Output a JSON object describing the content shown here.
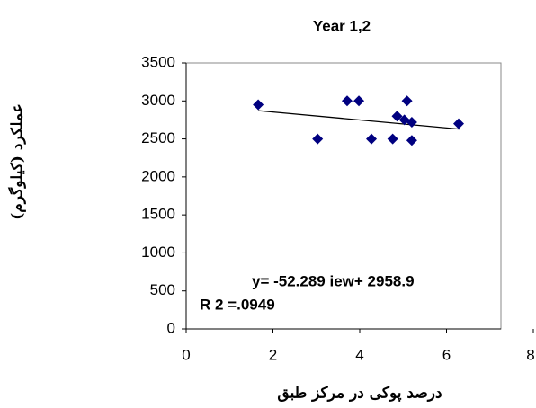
{
  "chart_data": {
    "type": "scatter",
    "title": "Year 1,2",
    "x_label": "درصد پوکی در مرکز طبق",
    "y_label": "عملکرد (کیلوگرم)",
    "series": [
      {
        "name": "Year 1,2",
        "color": "#000080",
        "x": [
          1.66,
          3.03,
          3.71,
          3.98,
          4.27,
          4.76,
          4.86,
          5.03,
          5.09,
          5.2,
          5.2,
          6.28
        ],
        "values": [
          2950,
          2500,
          3000,
          3000,
          2500,
          2500,
          2800,
          2750,
          3000,
          2720,
          2480,
          2700
        ]
      }
    ],
    "trendline": {
      "color": "#000000",
      "x": [
        1.66,
        6.3
      ],
      "values": [
        2872,
        2629
      ]
    },
    "annotations": [
      "y=  -52.289 iew+ 2958.9",
      "R 2 =.0949"
    ],
    "xlim": [
      0,
      8
    ],
    "xticks": [
      0,
      2,
      4,
      6,
      8
    ],
    "ylim": [
      0,
      3500
    ],
    "yticks": [
      0,
      500,
      1000,
      1500,
      2000,
      2500,
      3000,
      3500
    ],
    "grid": false
  }
}
